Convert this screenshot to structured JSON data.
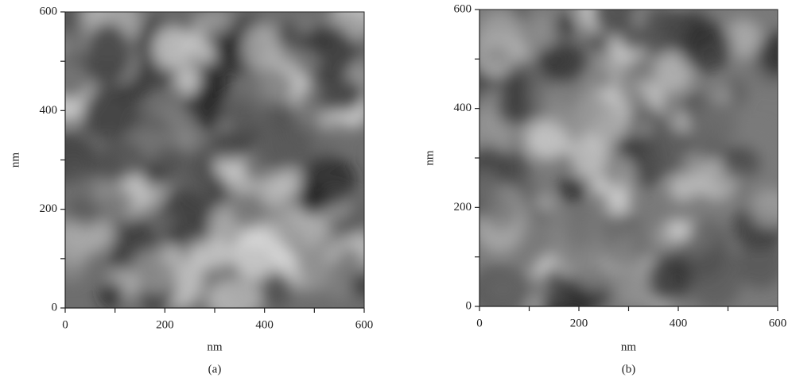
{
  "chart_data": [
    {
      "type": "image",
      "xlabel": "nm",
      "ylabel": "nm",
      "caption": "(a)",
      "xlim": [
        0,
        600
      ],
      "ylim": [
        0,
        600
      ],
      "xticks": [
        0,
        200,
        400,
        600
      ],
      "yticks": [
        0,
        200,
        400,
        600
      ],
      "minor_xticks": [
        100,
        300,
        500
      ],
      "minor_yticks": [
        100,
        300,
        500
      ]
    },
    {
      "type": "image",
      "xlabel": "nm",
      "ylabel": "nm",
      "caption": "(b)",
      "xlim": [
        0,
        600
      ],
      "ylim": [
        0,
        600
      ],
      "xticks": [
        0,
        200,
        400,
        600
      ],
      "yticks": [
        0,
        200,
        400,
        600
      ],
      "minor_xticks": [
        100,
        300,
        500
      ],
      "minor_yticks": [
        100,
        300,
        500
      ]
    }
  ]
}
